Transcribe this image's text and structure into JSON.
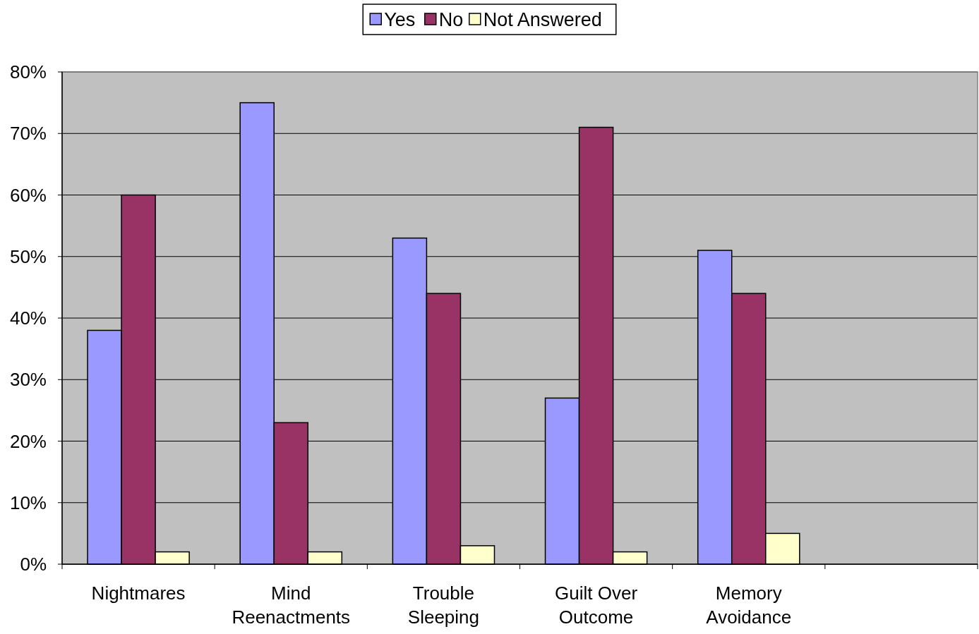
{
  "chart_data": {
    "type": "bar",
    "categories": [
      "Nightmares",
      "Mind Reenactments",
      "Trouble Sleeping",
      "Guilt Over Outcome",
      "Memory Avoidance",
      null
    ],
    "series": [
      {
        "name": "Yes",
        "color": "#9999ff",
        "values": [
          38,
          75,
          53,
          27,
          51,
          null
        ]
      },
      {
        "name": "No",
        "color": "#993366",
        "values": [
          60,
          23,
          44,
          71,
          44,
          null
        ]
      },
      {
        "name": "Not Answered",
        "color": "#ffffcc",
        "values": [
          2,
          2,
          3,
          2,
          5,
          null
        ]
      }
    ],
    "ylim": [
      0,
      80
    ],
    "yticks": [
      {
        "value": 0,
        "label": "0%"
      },
      {
        "value": 10,
        "label": "10%"
      },
      {
        "value": 20,
        "label": "20%"
      },
      {
        "value": 30,
        "label": "30%"
      },
      {
        "value": 40,
        "label": "40%"
      },
      {
        "value": 50,
        "label": "50%"
      },
      {
        "value": 60,
        "label": "60%"
      },
      {
        "value": 70,
        "label": "70%"
      },
      {
        "value": 80,
        "label": "80%"
      }
    ],
    "grid": "y",
    "legend": "top"
  }
}
